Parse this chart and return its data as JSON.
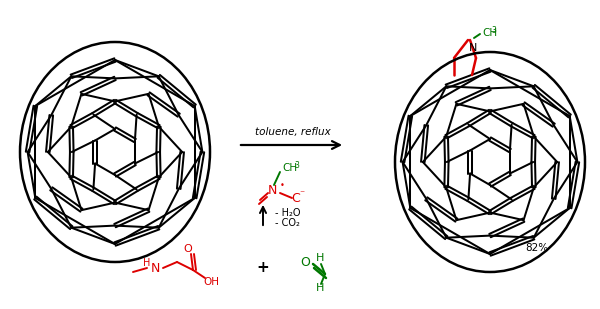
{
  "bg_color": "#ffffff",
  "black": "#000000",
  "red": "#dd0000",
  "green": "#007700",
  "figsize": [
    6.0,
    3.09
  ],
  "dpi": 100,
  "toluene_reflux": "toluene, reflux",
  "minus_h2o": "- H₂O",
  "minus_co2": "- CO₂",
  "yield_text": "82%"
}
